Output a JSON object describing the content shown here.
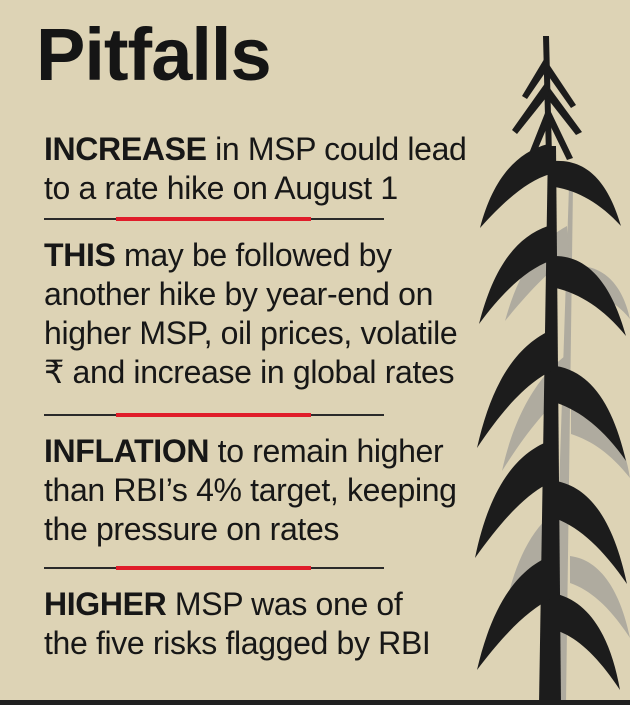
{
  "title": "Pitfalls",
  "points": [
    {
      "lead": "INCREASE",
      "text": " in MSP could lead\nto a rate hike on August 1"
    },
    {
      "lead": "THIS",
      "text": " may be followed by\nanother hike by year-end on\nhigher MSP, oil prices, volatile\n₹ and increase in global rates"
    },
    {
      "lead": "INFLATION",
      "text": " to remain higher\nthan RBI’s 4% target, keeping\nthe pressure on rates"
    },
    {
      "lead": "HIGHER",
      "text": " MSP was one of\nthe five risks flagged by RBI"
    }
  ],
  "colors": {
    "background": "#ddd3b5",
    "text": "#171717",
    "accent": "#e01d2a",
    "plant": "#1c1c1c",
    "plant_shadow": "#a8a59c"
  },
  "illustration": {
    "icon": "crop-plant-icon"
  }
}
